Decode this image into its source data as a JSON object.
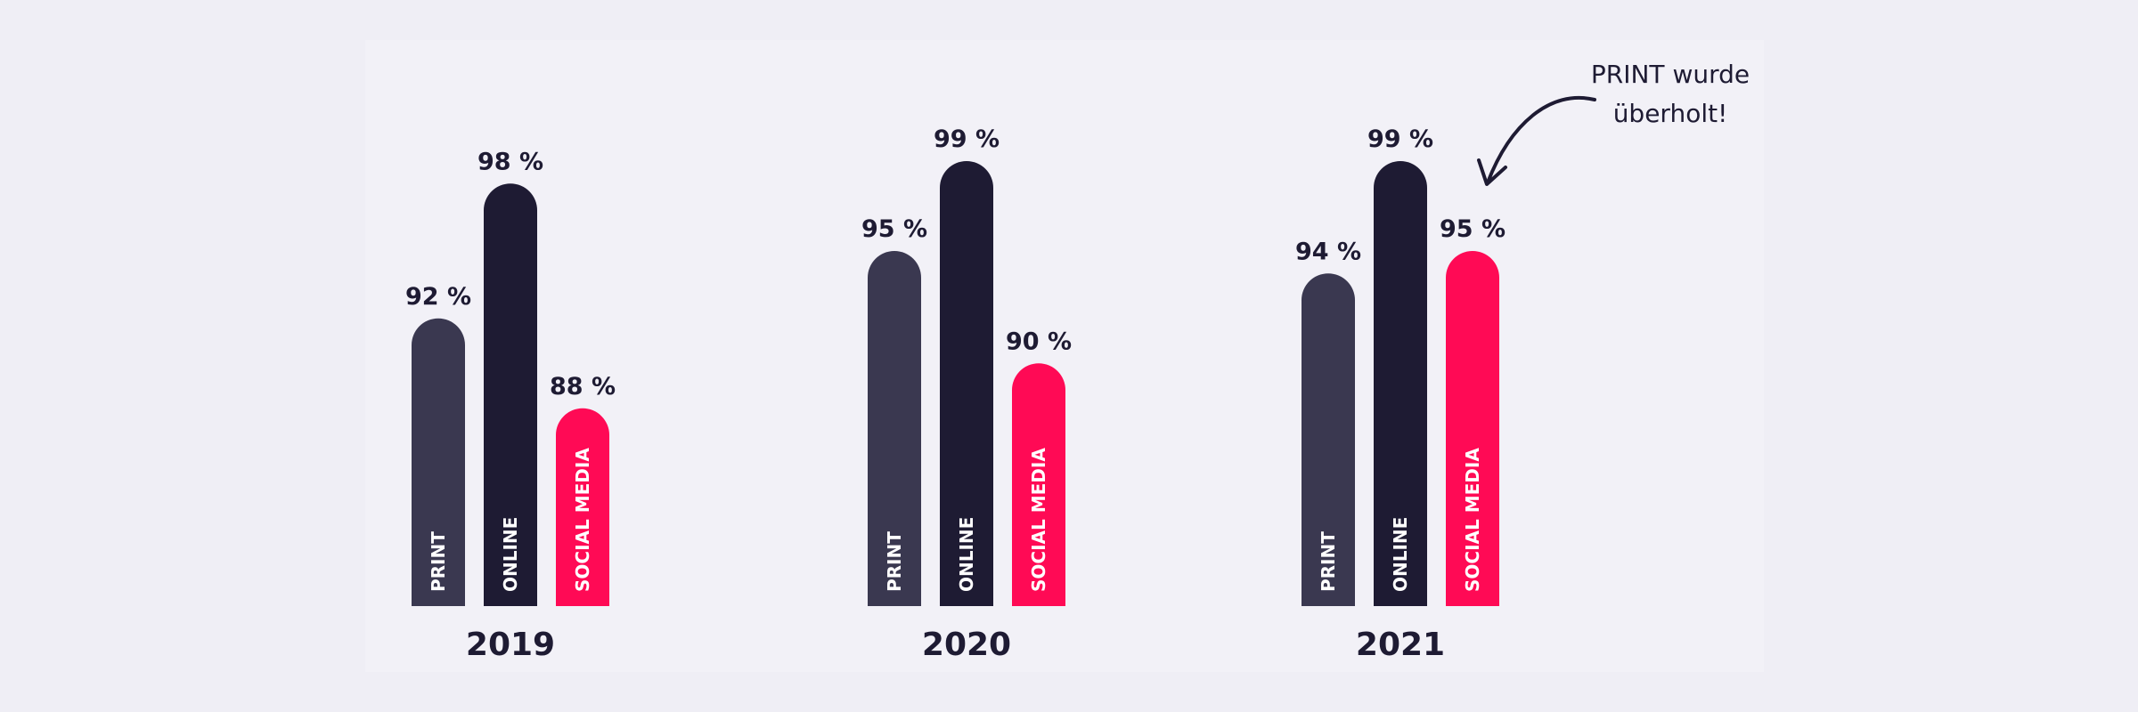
{
  "chart_data": {
    "type": "bar",
    "annotation": "PRINT wurde überholt!",
    "categories": [
      "2019",
      "2020",
      "2021"
    ],
    "series": [
      {
        "name": "PRINT",
        "color": "#3a3850",
        "values": [
          92,
          95,
          94
        ],
        "value_labels": [
          "92 %",
          "95 %",
          "94 %"
        ]
      },
      {
        "name": "ONLINE",
        "color": "#1e1b33",
        "values": [
          98,
          99,
          99
        ],
        "value_labels": [
          "98 %",
          "99 %",
          "99 %"
        ]
      },
      {
        "name": "SOCIAL MEDIA",
        "color": "#ff0a55",
        "values": [
          88,
          90,
          95
        ],
        "value_labels": [
          "88 %",
          "90 %",
          "95 %"
        ]
      }
    ]
  }
}
